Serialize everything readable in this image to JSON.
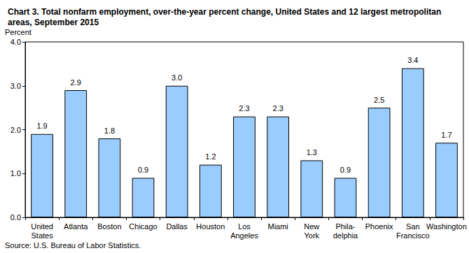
{
  "chart_data": {
    "type": "bar",
    "title": "Chart 3. Total nonfarm employment, over-the-year percent change, United States and 12 largest metropolitan areas, September 2015",
    "y_label": "Percent",
    "source": "Source: U.S. Bureau of Labor Statistics.",
    "categories": [
      "United\nStates",
      "Atlanta",
      "Boston",
      "Chicago",
      "Dallas",
      "Houston",
      "Los\nAngeles",
      "Miami",
      "New\nYork",
      "Phila-\ndelphia",
      "Phoenix",
      "San\nFrancisco",
      "Washington"
    ],
    "values": [
      1.9,
      2.9,
      1.8,
      0.9,
      3.0,
      1.2,
      2.3,
      2.3,
      1.3,
      0.9,
      2.5,
      3.4,
      1.7
    ],
    "value_labels": [
      "1.9",
      "2.9",
      "1.8",
      "0.9",
      "3.0",
      "1.2",
      "2.3",
      "2.3",
      "1.3",
      "0.9",
      "2.5",
      "3.4",
      "1.7"
    ],
    "data_labels": true,
    "color": "#99ccff",
    "ylim": [
      0,
      4
    ],
    "yticks": [
      {
        "value": 0,
        "label": "0.0"
      },
      {
        "value": 1,
        "label": "1.0"
      },
      {
        "value": 2,
        "label": "2.0"
      },
      {
        "value": 3,
        "label": "3.0"
      },
      {
        "value": 4,
        "label": "4.0"
      }
    ],
    "grid": false
  }
}
